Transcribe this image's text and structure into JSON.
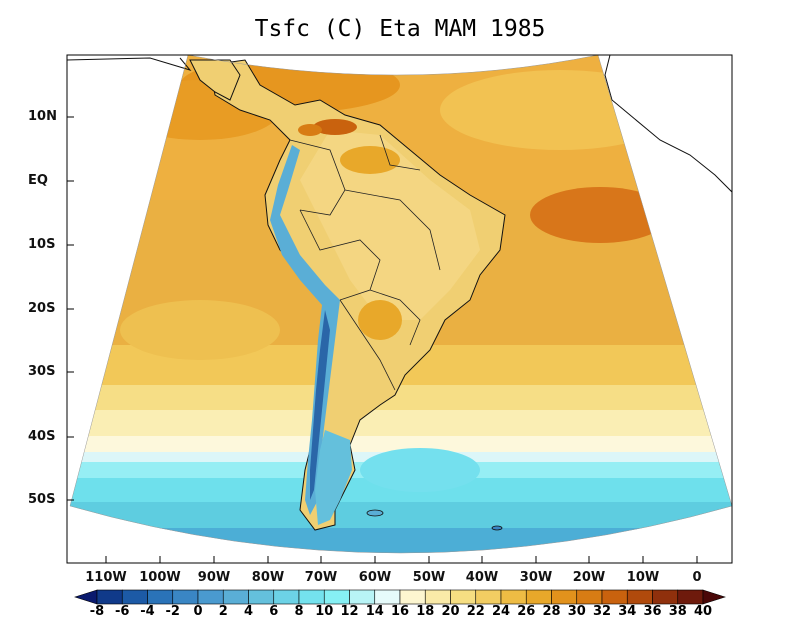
{
  "title": "Tsfc (C) Eta MAM 1985",
  "lat_labels": [
    "10N",
    "EQ",
    "10S",
    "20S",
    "30S",
    "40S",
    "50S"
  ],
  "lon_labels": [
    "110W",
    "100W",
    "90W",
    "80W",
    "70W",
    "60W",
    "50W",
    "40W",
    "30W",
    "20W",
    "10W",
    "0"
  ],
  "colorbar": {
    "labels": [
      "-8",
      "-6",
      "-4",
      "-2",
      "0",
      "2",
      "4",
      "6",
      "8",
      "10",
      "12",
      "14",
      "16",
      "18",
      "20",
      "22",
      "24",
      "26",
      "28",
      "30",
      "32",
      "34",
      "36",
      "38",
      "40"
    ],
    "colors": [
      "#0a1a6e",
      "#103a8a",
      "#1c5aa6",
      "#2a73b8",
      "#3a86c4",
      "#4a9acf",
      "#5aaed6",
      "#64c0dc",
      "#6cd2e6",
      "#74e2ee",
      "#86f0f4",
      "#b8f4f6",
      "#e6fbfb",
      "#fdf6d0",
      "#faeaa8",
      "#f6de82",
      "#f2cd62",
      "#eebc44",
      "#e8a82a",
      "#e2921c",
      "#d87c14",
      "#c9620e",
      "#b04a0c",
      "#8f300c",
      "#6e1a0c",
      "#4a0808"
    ],
    "unit": "C"
  },
  "colors": {
    "ocean_warm": "#eeb040",
    "ocean_cool": "#64d6e8",
    "land": "#f0cf70",
    "andes_cold": "#3a7fbf"
  }
}
